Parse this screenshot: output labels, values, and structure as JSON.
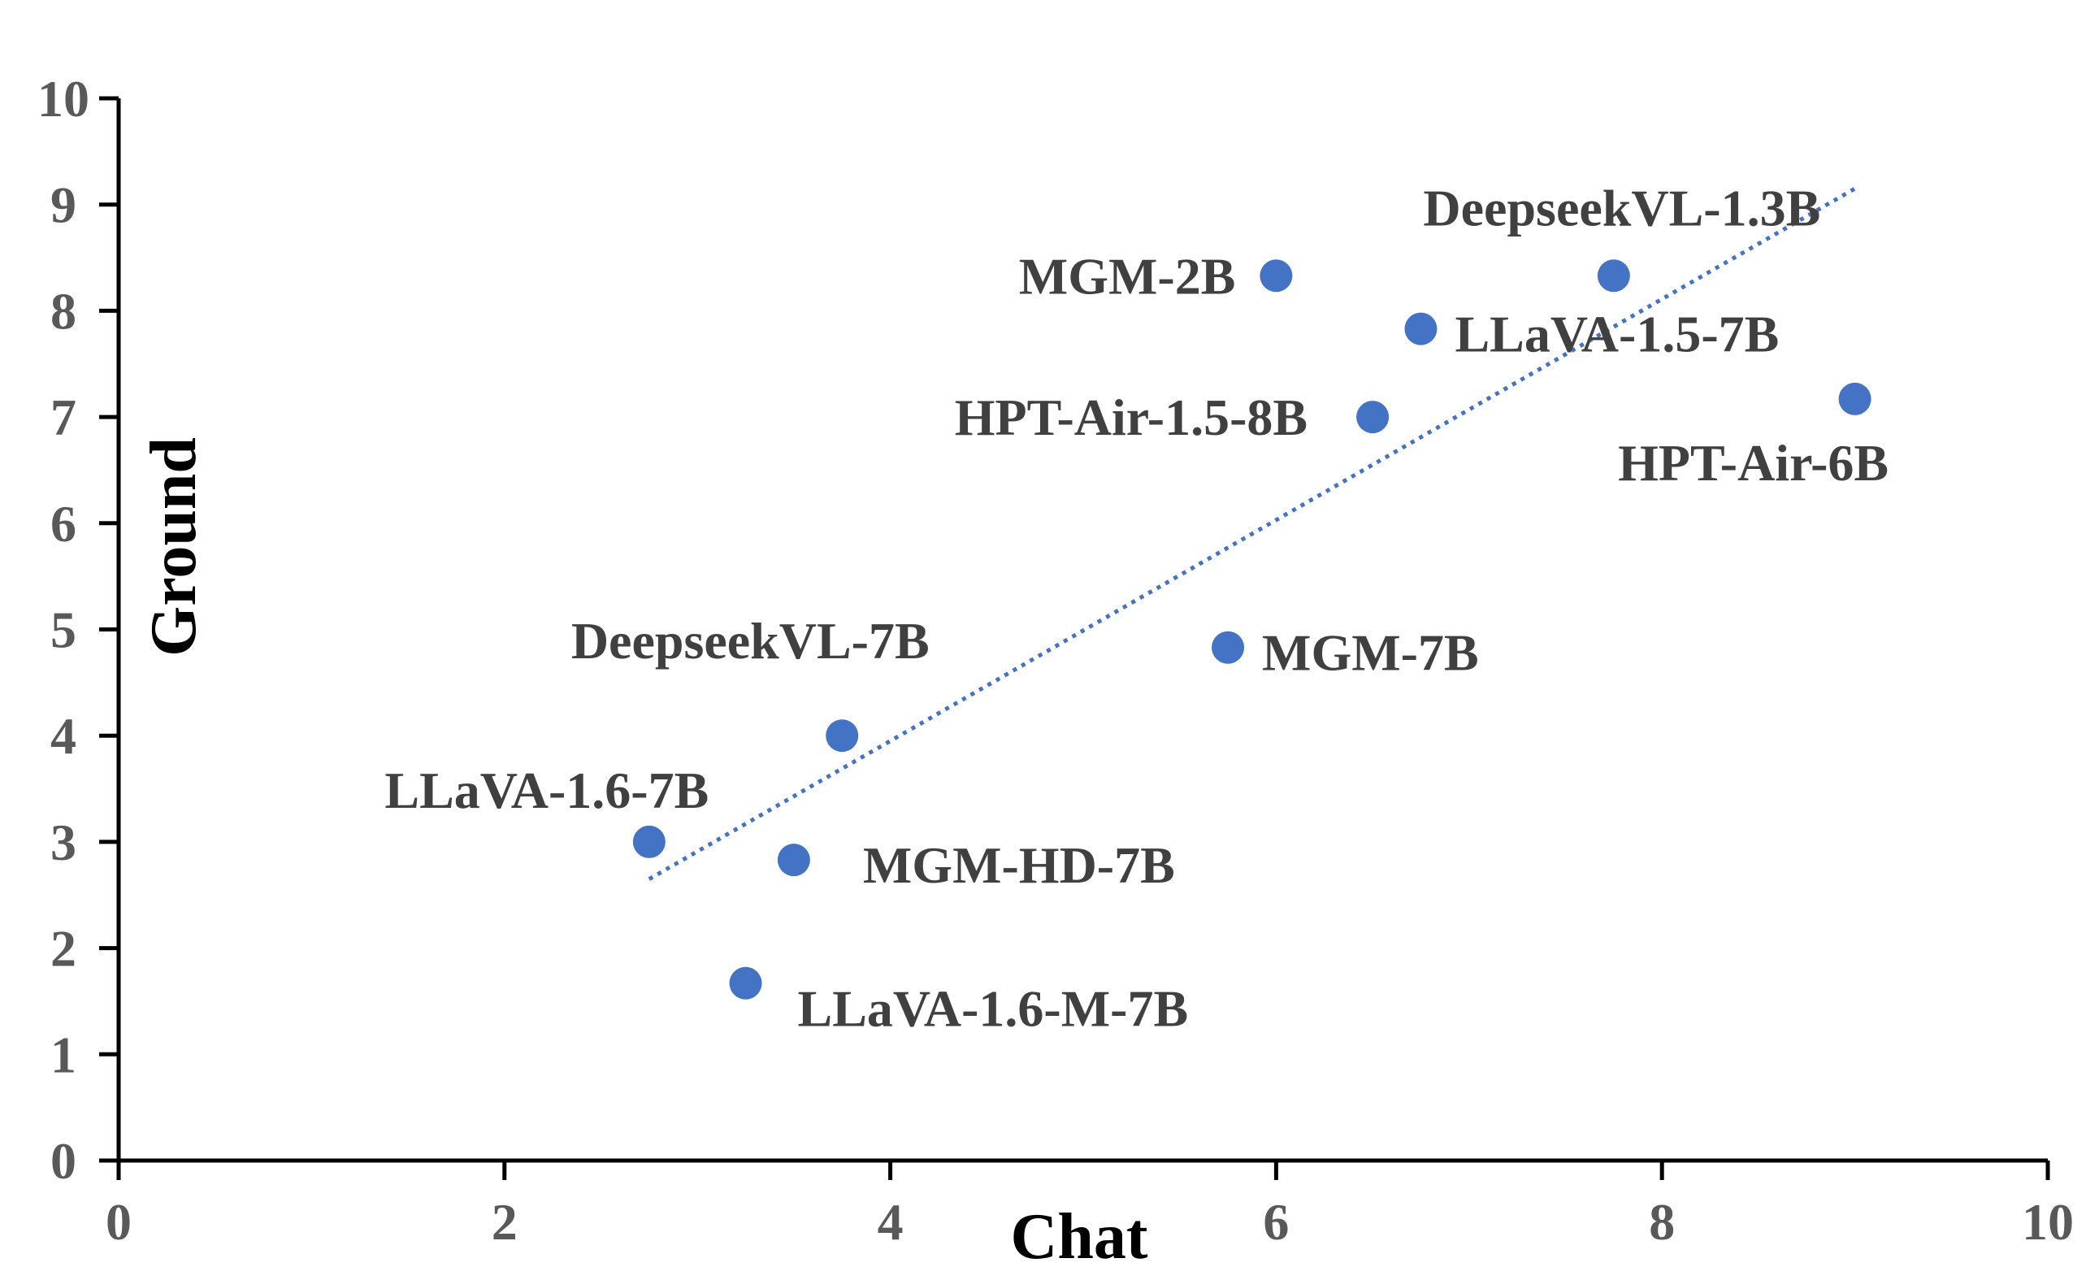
{
  "chart_data": {
    "type": "scatter",
    "title": "",
    "xlabel": "Chat",
    "ylabel": "Ground",
    "xlim": [
      0,
      10
    ],
    "ylim": [
      0,
      10
    ],
    "xticks": [
      "0",
      "2",
      "4",
      "6",
      "8",
      "10"
    ],
    "yticks": [
      "0",
      "1",
      "2",
      "3",
      "4",
      "5",
      "6",
      "7",
      "8",
      "9",
      "10"
    ],
    "grid": false,
    "legend": "none",
    "point_color": "#4472C4",
    "trendline_color": "#4472C4",
    "trendline": {
      "style": "dotted",
      "x": [
        2.75,
        9.0
      ],
      "y": [
        2.65,
        9.15
      ]
    },
    "points": [
      {
        "name": "DeepseekVL-1.3B",
        "x": 7.75,
        "y": 8.33
      },
      {
        "name": "MGM-2B",
        "x": 6.0,
        "y": 8.33
      },
      {
        "name": "LLaVA-1.5-7B",
        "x": 6.75,
        "y": 7.83
      },
      {
        "name": "HPT-Air-1.5-8B",
        "x": 6.5,
        "y": 7.0
      },
      {
        "name": "HPT-Air-6B",
        "x": 9.0,
        "y": 7.17
      },
      {
        "name": "MGM-7B",
        "x": 5.75,
        "y": 4.83
      },
      {
        "name": "DeepseekVL-7B",
        "x": 3.75,
        "y": 4.0
      },
      {
        "name": "LLaVA-1.6-7B",
        "x": 2.75,
        "y": 3.0
      },
      {
        "name": "MGM-HD-7B",
        "x": 3.5,
        "y": 2.83
      },
      {
        "name": "LLaVA-1.6-M-7B",
        "x": 3.25,
        "y": 1.67
      }
    ]
  }
}
